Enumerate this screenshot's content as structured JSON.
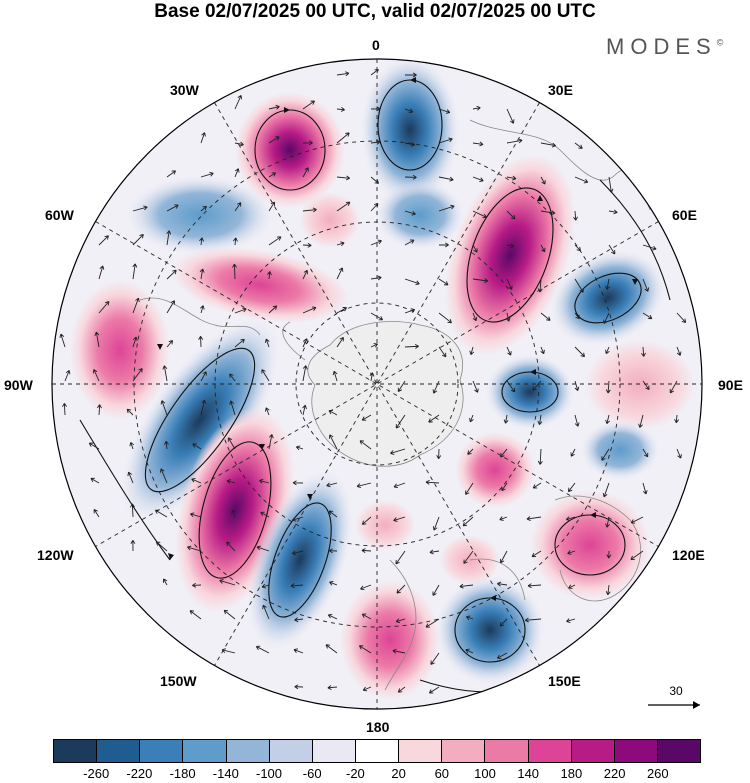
{
  "title": "Base 02/07/2025 00 UTC, valid 02/07/2025 00 UTC",
  "brand": "MODES",
  "brand_mark": "©",
  "longitude_labels": {
    "top": "0",
    "e30": "30E",
    "e60": "60E",
    "e90": "90E",
    "e120": "120E",
    "e150": "150E",
    "bottom": "180",
    "w150": "150W",
    "w120": "120W",
    "w90": "90W",
    "w60": "60W",
    "w30": "30W"
  },
  "reference_vector": "30",
  "colorbar": {
    "colors": [
      "#1b3a5c",
      "#1f5c8f",
      "#3a7fb8",
      "#5e9ccb",
      "#93b6d8",
      "#c3cfe6",
      "#e9e8f3",
      "#ffffff",
      "#f8d7dd",
      "#f3adc0",
      "#ec7aa7",
      "#dd4497",
      "#b71b85",
      "#8e0a7c",
      "#5a0868"
    ],
    "labels": [
      "-260",
      "-220",
      "-180",
      "-140",
      "-100",
      "-60",
      "-20",
      "20",
      "60",
      "100",
      "140",
      "180",
      "220",
      "260"
    ]
  },
  "icons": {
    "map": "polar-stereographic-map",
    "arrow": "reference-arrow-icon"
  }
}
